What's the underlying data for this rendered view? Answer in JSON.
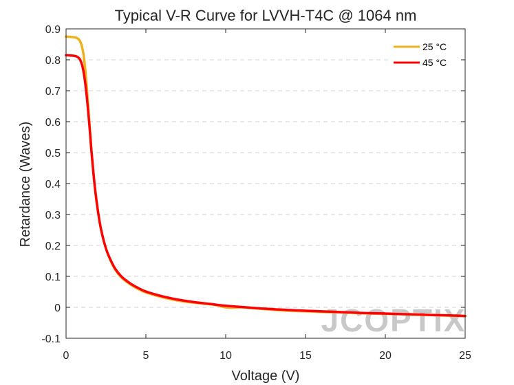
{
  "chart_data": {
    "type": "line",
    "title": "Typical V-R Curve for LVVH-T4C @ 1064 nm",
    "xlabel": "Voltage (V)",
    "ylabel": "Retardance (Waves)",
    "xlim": [
      0,
      25
    ],
    "ylim": [
      -0.1,
      0.9
    ],
    "xticks": [
      0,
      5,
      10,
      15,
      20,
      25
    ],
    "xtick_labels": [
      "0",
      "5",
      "10",
      "15",
      "20",
      "25"
    ],
    "yticks": [
      -0.1,
      0,
      0.1,
      0.2,
      0.3,
      0.4,
      0.5,
      0.6,
      0.7,
      0.8,
      0.9
    ],
    "ytick_labels": [
      "-0.1",
      "0",
      "0.1",
      "0.2",
      "0.3",
      "0.4",
      "0.5",
      "0.6",
      "0.7",
      "0.8",
      "0.9"
    ],
    "grid": "horizontal dashed",
    "legend_position": "top-right",
    "series": [
      {
        "name": "25 °C",
        "color": "#EDB120",
        "x": [
          0,
          0.3,
          0.6,
          0.8,
          0.9,
          1.0,
          1.1,
          1.2,
          1.3,
          1.4,
          1.5,
          1.6,
          1.8,
          2.0,
          2.2,
          2.5,
          2.8,
          3.1,
          3.5,
          4.0,
          4.5,
          5.0,
          6.0,
          7.0,
          8.0,
          9.0,
          9.5,
          10.0,
          10.5,
          11.0,
          12.0,
          13.0,
          14.0,
          15.0,
          16.0,
          17.0,
          18.0,
          19.0,
          20.0,
          21.0,
          22.0,
          23.0,
          24.0,
          25.0
        ],
        "y": [
          0.875,
          0.874,
          0.872,
          0.866,
          0.858,
          0.842,
          0.815,
          0.77,
          0.71,
          0.64,
          0.57,
          0.5,
          0.39,
          0.31,
          0.25,
          0.19,
          0.15,
          0.12,
          0.095,
          0.075,
          0.06,
          0.048,
          0.033,
          0.022,
          0.015,
          0.01,
          0.006,
          0.0,
          -0.001,
          0.0,
          -0.004,
          -0.008,
          -0.011,
          -0.013,
          -0.015,
          -0.016,
          -0.018,
          -0.02,
          -0.021,
          -0.022,
          -0.024,
          -0.025,
          -0.027,
          -0.028
        ]
      },
      {
        "name": "45 °C",
        "color": "#FF0000",
        "x": [
          0,
          0.3,
          0.6,
          0.8,
          0.9,
          1.0,
          1.1,
          1.2,
          1.3,
          1.4,
          1.5,
          1.6,
          1.8,
          2.0,
          2.2,
          2.5,
          2.8,
          3.1,
          3.5,
          4.0,
          4.5,
          5.0,
          6.0,
          7.0,
          8.0,
          9.0,
          10.0,
          11.0,
          12.0,
          13.0,
          14.0,
          15.0,
          16.0,
          17.0,
          18.0,
          19.0,
          20.0,
          21.0,
          22.0,
          23.0,
          24.0,
          25.0
        ],
        "y": [
          0.815,
          0.814,
          0.812,
          0.806,
          0.798,
          0.784,
          0.76,
          0.725,
          0.68,
          0.625,
          0.565,
          0.5,
          0.39,
          0.31,
          0.25,
          0.19,
          0.152,
          0.123,
          0.098,
          0.078,
          0.063,
          0.051,
          0.036,
          0.025,
          0.017,
          0.011,
          0.005,
          0.001,
          -0.003,
          -0.006,
          -0.009,
          -0.011,
          -0.013,
          -0.015,
          -0.017,
          -0.019,
          -0.02,
          -0.022,
          -0.023,
          -0.025,
          -0.026,
          -0.028
        ]
      }
    ]
  },
  "watermark": "JCOPTIX"
}
